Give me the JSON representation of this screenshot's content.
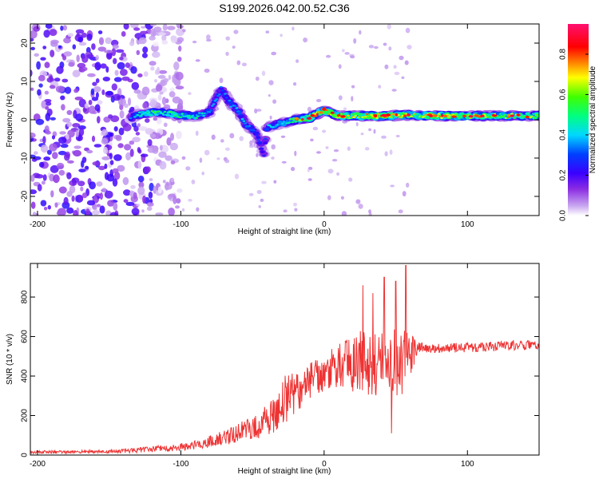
{
  "title": "S199.2026.042.00.52.C36",
  "chart_data": [
    {
      "type": "heatmap",
      "name": "spectrogram",
      "xlabel": "Height of straight line (km)",
      "ylabel": "Frequency (Hz)",
      "xlim": [
        -205,
        150
      ],
      "ylim": [
        -25,
        25
      ],
      "xticks": [
        -200,
        -100,
        0,
        100
      ],
      "yticks": [
        -20,
        -10,
        0,
        10,
        20
      ],
      "colorbar": {
        "label": "Normalized spectral amplitude",
        "range": [
          0,
          0.95
        ],
        "ticks": [
          0.0,
          0.2,
          0.4,
          0.6,
          0.8
        ],
        "tick_labels": [
          "0.0",
          "0.2",
          "0.4",
          "0.6",
          "0.8"
        ]
      },
      "noise_region": {
        "x": [
          -205,
          -120
        ],
        "amplitude": [
          0.02,
          0.25
        ]
      },
      "ridge": [
        {
          "x": -135,
          "f": 0.5,
          "a": 0.3
        },
        {
          "x": -128,
          "f": 1.5,
          "a": 0.45
        },
        {
          "x": -115,
          "f": 2.0,
          "a": 0.5
        },
        {
          "x": -100,
          "f": 1.2,
          "a": 0.45
        },
        {
          "x": -90,
          "f": 0.8,
          "a": 0.45
        },
        {
          "x": -80,
          "f": 2.0,
          "a": 0.35
        },
        {
          "x": -72,
          "f": 8.0,
          "a": 0.3
        },
        {
          "x": -65,
          "f": 4.0,
          "a": 0.35
        },
        {
          "x": -60,
          "f": 2.5,
          "a": 0.35
        },
        {
          "x": -55,
          "f": -1.0,
          "a": 0.35
        },
        {
          "x": -48,
          "f": -3.0,
          "a": 0.3
        },
        {
          "x": -42,
          "f": -9.0,
          "a": 0.25
        },
        {
          "x": -40,
          "f": -2.0,
          "a": 0.35
        },
        {
          "x": -30,
          "f": -1.0,
          "a": 0.4
        },
        {
          "x": -20,
          "f": 0.0,
          "a": 0.55
        },
        {
          "x": -10,
          "f": 0.5,
          "a": 0.6
        },
        {
          "x": 0,
          "f": 2.5,
          "a": 0.7
        },
        {
          "x": 10,
          "f": 1.0,
          "a": 0.65
        },
        {
          "x": 25,
          "f": 1.0,
          "a": 0.65
        },
        {
          "x": 40,
          "f": 1.0,
          "a": 0.7
        },
        {
          "x": 60,
          "f": 1.2,
          "a": 0.6
        },
        {
          "x": 80,
          "f": 1.0,
          "a": 0.65
        },
        {
          "x": 100,
          "f": 1.0,
          "a": 0.6
        },
        {
          "x": 150,
          "f": 1.0,
          "a": 0.55
        }
      ]
    },
    {
      "type": "line",
      "name": "snr",
      "xlabel": "Height of straight line (km)",
      "ylabel": "SNR (10 * v/v)",
      "xlim": [
        -205,
        150
      ],
      "ylim": [
        0,
        970
      ],
      "xticks": [
        -200,
        -100,
        0,
        100
      ],
      "yticks": [
        0,
        200,
        400,
        600,
        800
      ],
      "color": "#ee3333",
      "series": [
        {
          "name": "SNR",
          "x": [
            -205,
            -180,
            -160,
            -140,
            -120,
            -100,
            -85,
            -75,
            -60,
            -50,
            -45,
            -35,
            -30,
            -25,
            -20,
            -10,
            0,
            10,
            20,
            25,
            30,
            40,
            50,
            60,
            65,
            70,
            80,
            100,
            120,
            150
          ],
          "mean": [
            15,
            15,
            18,
            20,
            30,
            40,
            55,
            80,
            110,
            140,
            150,
            200,
            260,
            300,
            320,
            370,
            400,
            440,
            460,
            450,
            470,
            460,
            470,
            470,
            550,
            540,
            540,
            545,
            550,
            560
          ],
          "noise": [
            8,
            8,
            8,
            10,
            15,
            20,
            25,
            35,
            50,
            60,
            70,
            90,
            110,
            130,
            120,
            100,
            110,
            120,
            150,
            180,
            180,
            180,
            180,
            160,
            30,
            25,
            25,
            25,
            25,
            25
          ]
        }
      ],
      "peaks": [
        {
          "x": 27,
          "y": 860
        },
        {
          "x": 34,
          "y": 820
        },
        {
          "x": 42,
          "y": 900
        },
        {
          "x": 50,
          "y": 880
        },
        {
          "x": 57,
          "y": 960
        },
        {
          "x": 47,
          "y": 110
        }
      ]
    }
  ]
}
